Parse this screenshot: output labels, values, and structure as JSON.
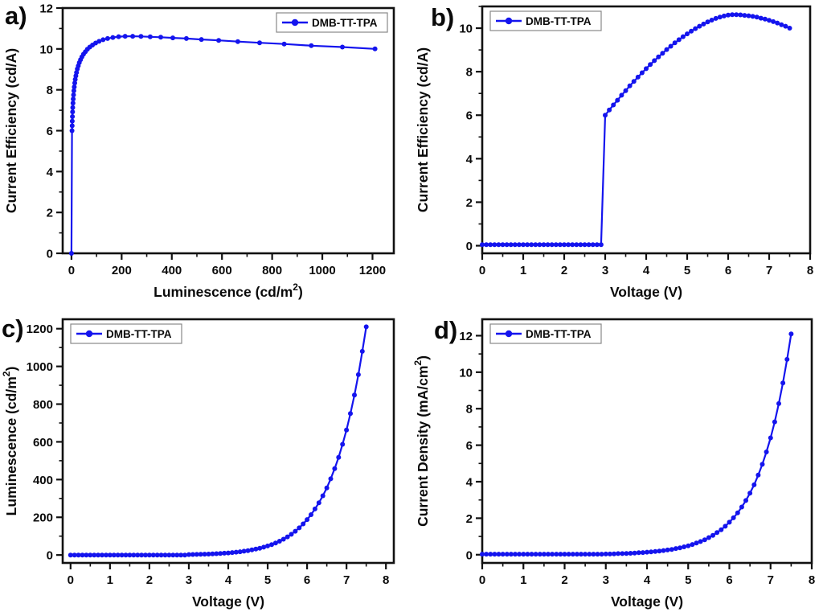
{
  "figure": {
    "background": "#ffffff",
    "accent_color": "#1414ee",
    "frame_color": "#111111",
    "legend_border_color": "#888888",
    "series_name": "DMB-TT-TPA"
  },
  "chart_data": [
    {
      "id": "a",
      "panel_label": "a)",
      "type": "line",
      "title": "",
      "legend": "DMB-TT-TPA",
      "legend_pos": "top-right",
      "xlabel_segs": [
        {
          "t": "Luminescence (cd/m"
        },
        {
          "t": "2",
          "sup": true
        },
        {
          "t": ")"
        }
      ],
      "ylabel_segs": [
        {
          "t": "Current Efficiency (cd/A)"
        }
      ],
      "xlim": [
        -35,
        1285
      ],
      "ylim": [
        0,
        12
      ],
      "xticks": [
        0,
        200,
        400,
        600,
        800,
        1000,
        1200
      ],
      "yticks": [
        0,
        2,
        4,
        6,
        8,
        10,
        12
      ],
      "x_minor": 100,
      "y_minor": 1,
      "series": [
        {
          "name": "DMB-TT-TPA",
          "color": "#1414ee",
          "x": [
            0,
            2.3,
            2.7,
            3.2,
            3.7,
            4.4,
            5.1,
            6,
            7,
            8.2,
            9.5,
            11,
            13,
            15,
            17.4,
            20.2,
            23.4,
            27,
            31.3,
            36.1,
            41.6,
            48,
            55.2,
            63.5,
            73,
            83.8,
            96.2,
            110,
            126,
            144,
            165,
            188,
            214,
            244,
            277,
            314,
            356,
            404,
            458,
            518,
            587,
            663,
            750,
            848,
            956,
            1080,
            1210
          ],
          "y": [
            0,
            6.0,
            6.24,
            6.47,
            6.69,
            6.92,
            7.13,
            7.35,
            7.55,
            7.75,
            7.95,
            8.14,
            8.33,
            8.51,
            8.68,
            8.85,
            9.02,
            9.17,
            9.33,
            9.47,
            9.61,
            9.74,
            9.86,
            9.98,
            10.09,
            10.19,
            10.29,
            10.37,
            10.45,
            10.51,
            10.56,
            10.6,
            10.62,
            10.62,
            10.61,
            10.59,
            10.57,
            10.54,
            10.51,
            10.46,
            10.42,
            10.36,
            10.3,
            10.24,
            10.16,
            10.09,
            10.0
          ]
        }
      ]
    },
    {
      "id": "b",
      "panel_label": "b)",
      "type": "line",
      "title": "",
      "legend": "DMB-TT-TPA",
      "legend_pos": "top-left",
      "xlabel_segs": [
        {
          "t": "Voltage (V)"
        }
      ],
      "ylabel_segs": [
        {
          "t": "Current Efficiency (cd/A)"
        }
      ],
      "xlim": [
        0,
        8
      ],
      "ylim": [
        -0.35,
        11.0
      ],
      "xticks": [
        0,
        1,
        2,
        3,
        4,
        5,
        6,
        7,
        8
      ],
      "yticks": [
        0,
        2,
        4,
        6,
        8,
        10
      ],
      "x_minor": 0.5,
      "y_minor": 1,
      "series": [
        {
          "name": "DMB-TT-TPA",
          "color": "#1414ee",
          "x": [
            0,
            0.1,
            0.2,
            0.3,
            0.4,
            0.5,
            0.6,
            0.7,
            0.8,
            0.9,
            1,
            1.1,
            1.2,
            1.3,
            1.4,
            1.5,
            1.6,
            1.7,
            1.8,
            1.9,
            2,
            2.1,
            2.2,
            2.3,
            2.4,
            2.5,
            2.6,
            2.7,
            2.8,
            2.9,
            3,
            3.1,
            3.2,
            3.3,
            3.4,
            3.5,
            3.6,
            3.7,
            3.8,
            3.9,
            4,
            4.1,
            4.2,
            4.3,
            4.4,
            4.5,
            4.6,
            4.7,
            4.8,
            4.9,
            5,
            5.1,
            5.2,
            5.3,
            5.4,
            5.5,
            5.6,
            5.7,
            5.8,
            5.9,
            6,
            6.1,
            6.2,
            6.3,
            6.4,
            6.5,
            6.6,
            6.7,
            6.8,
            6.9,
            7,
            7.1,
            7.2,
            7.3,
            7.4,
            7.5
          ],
          "y": [
            0.05,
            0.05,
            0.05,
            0.05,
            0.05,
            0.05,
            0.05,
            0.05,
            0.05,
            0.05,
            0.05,
            0.05,
            0.05,
            0.05,
            0.05,
            0.05,
            0.05,
            0.05,
            0.05,
            0.05,
            0.05,
            0.05,
            0.05,
            0.05,
            0.05,
            0.05,
            0.05,
            0.05,
            0.05,
            0.05,
            6.0,
            6.24,
            6.47,
            6.69,
            6.92,
            7.13,
            7.35,
            7.55,
            7.75,
            7.95,
            8.14,
            8.33,
            8.51,
            8.68,
            8.85,
            9.02,
            9.17,
            9.33,
            9.47,
            9.61,
            9.74,
            9.86,
            9.98,
            10.09,
            10.19,
            10.29,
            10.37,
            10.45,
            10.51,
            10.56,
            10.6,
            10.62,
            10.62,
            10.61,
            10.59,
            10.57,
            10.54,
            10.51,
            10.46,
            10.42,
            10.36,
            10.3,
            10.24,
            10.16,
            10.09,
            10.0
          ]
        }
      ]
    },
    {
      "id": "c",
      "panel_label": "c)",
      "type": "line",
      "title": "",
      "legend": "DMB-TT-TPA",
      "legend_pos": "top-left",
      "xlabel_segs": [
        {
          "t": "Voltage (V)"
        }
      ],
      "ylabel_segs": [
        {
          "t": "Luminescence (cd/m"
        },
        {
          "t": "2",
          "sup": true
        },
        {
          "t": ")"
        }
      ],
      "xlim": [
        -0.2,
        8.2
      ],
      "ylim": [
        -42,
        1250
      ],
      "xticks": [
        0,
        1,
        2,
        3,
        4,
        5,
        6,
        7,
        8
      ],
      "yticks": [
        0,
        200,
        400,
        600,
        800,
        1000,
        1200
      ],
      "x_minor": 0.5,
      "y_minor": 100,
      "series": [
        {
          "name": "DMB-TT-TPA",
          "color": "#1414ee",
          "x": [
            0,
            0.1,
            0.2,
            0.3,
            0.4,
            0.5,
            0.6,
            0.7,
            0.8,
            0.9,
            1,
            1.1,
            1.2,
            1.3,
            1.4,
            1.5,
            1.6,
            1.7,
            1.8,
            1.9,
            2,
            2.1,
            2.2,
            2.3,
            2.4,
            2.5,
            2.6,
            2.7,
            2.8,
            2.9,
            3,
            3.1,
            3.2,
            3.3,
            3.4,
            3.5,
            3.6,
            3.7,
            3.8,
            3.9,
            4,
            4.1,
            4.2,
            4.3,
            4.4,
            4.5,
            4.6,
            4.7,
            4.8,
            4.9,
            5,
            5.1,
            5.2,
            5.3,
            5.4,
            5.5,
            5.6,
            5.7,
            5.8,
            5.9,
            6,
            6.1,
            6.2,
            6.3,
            6.4,
            6.5,
            6.6,
            6.7,
            6.8,
            6.9,
            7,
            7.1,
            7.2,
            7.3,
            7.4,
            7.5
          ],
          "y": [
            0,
            0,
            0,
            0,
            0,
            0,
            0,
            0,
            0,
            0,
            0,
            0,
            0,
            0,
            0,
            0,
            0,
            0,
            0,
            0,
            0,
            0,
            0,
            0,
            0,
            0,
            0,
            0,
            0,
            0,
            2.3,
            2.7,
            3.2,
            3.7,
            4.4,
            5.1,
            6,
            7,
            8.2,
            9.5,
            11,
            13,
            15,
            17.4,
            20.2,
            23.4,
            27,
            31.3,
            36.1,
            41.6,
            48,
            55.2,
            63.5,
            73,
            83.8,
            96.2,
            110,
            126,
            144,
            165,
            188,
            214,
            244,
            277,
            314,
            356,
            404,
            458,
            518,
            587,
            663,
            750,
            848,
            956,
            1080,
            1210
          ]
        }
      ]
    },
    {
      "id": "d",
      "panel_label": "d)",
      "type": "line",
      "title": "",
      "legend": "DMB-TT-TPA",
      "legend_pos": "top-left",
      "xlabel_segs": [
        {
          "t": "Voltage (V)"
        }
      ],
      "ylabel_segs": [
        {
          "t": "Current Density (mA/cm"
        },
        {
          "t": "2",
          "sup": true
        },
        {
          "t": ")"
        }
      ],
      "xlim": [
        0,
        8
      ],
      "ylim": [
        -0.45,
        12.9
      ],
      "xticks": [
        0,
        1,
        2,
        3,
        4,
        5,
        6,
        7,
        8
      ],
      "yticks": [
        0,
        2,
        4,
        6,
        8,
        10,
        12
      ],
      "x_minor": 0.5,
      "y_minor": 1,
      "series": [
        {
          "name": "DMB-TT-TPA",
          "color": "#1414ee",
          "x": [
            0,
            0.1,
            0.2,
            0.3,
            0.4,
            0.5,
            0.6,
            0.7,
            0.8,
            0.9,
            1,
            1.1,
            1.2,
            1.3,
            1.4,
            1.5,
            1.6,
            1.7,
            1.8,
            1.9,
            2,
            2.1,
            2.2,
            2.3,
            2.4,
            2.5,
            2.6,
            2.7,
            2.8,
            2.9,
            3,
            3.1,
            3.2,
            3.3,
            3.4,
            3.5,
            3.6,
            3.7,
            3.8,
            3.9,
            4,
            4.1,
            4.2,
            4.3,
            4.4,
            4.5,
            4.6,
            4.7,
            4.8,
            4.9,
            5,
            5.1,
            5.2,
            5.3,
            5.4,
            5.5,
            5.6,
            5.7,
            5.8,
            5.9,
            6,
            6.1,
            6.2,
            6.3,
            6.4,
            6.5,
            6.6,
            6.7,
            6.8,
            6.9,
            7,
            7.1,
            7.2,
            7.3,
            7.4,
            7.5
          ],
          "y": [
            0.03,
            0.03,
            0.03,
            0.03,
            0.03,
            0.03,
            0.03,
            0.03,
            0.03,
            0.03,
            0.03,
            0.03,
            0.03,
            0.03,
            0.03,
            0.03,
            0.03,
            0.03,
            0.03,
            0.03,
            0.03,
            0.03,
            0.03,
            0.03,
            0.03,
            0.03,
            0.03,
            0.03,
            0.03,
            0.03,
            0.04,
            0.04,
            0.05,
            0.06,
            0.06,
            0.07,
            0.08,
            0.09,
            0.11,
            0.12,
            0.14,
            0.16,
            0.18,
            0.2,
            0.23,
            0.26,
            0.29,
            0.34,
            0.38,
            0.43,
            0.49,
            0.56,
            0.64,
            0.72,
            0.82,
            0.94,
            1.06,
            1.21,
            1.37,
            1.56,
            1.78,
            2.02,
            2.29,
            2.61,
            2.97,
            3.37,
            3.83,
            4.36,
            4.95,
            5.63,
            6.4,
            7.28,
            8.28,
            9.41,
            10.7,
            12.1
          ]
        }
      ]
    }
  ]
}
